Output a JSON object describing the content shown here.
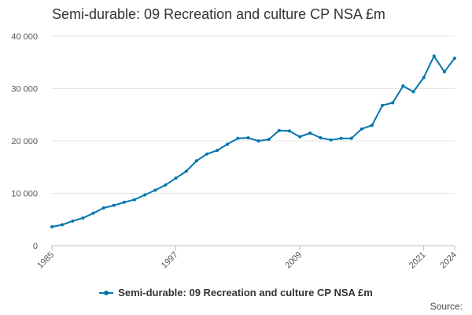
{
  "chart_data": {
    "type": "line",
    "title": "Semi-durable: 09 Recreation and culture CP NSA £m",
    "xlabel": "",
    "ylabel": "",
    "x": [
      1985,
      1986,
      1987,
      1988,
      1989,
      1990,
      1991,
      1992,
      1993,
      1994,
      1995,
      1996,
      1997,
      1998,
      1999,
      2000,
      2001,
      2002,
      2003,
      2004,
      2005,
      2006,
      2007,
      2008,
      2009,
      2010,
      2011,
      2012,
      2013,
      2014,
      2015,
      2016,
      2017,
      2018,
      2019,
      2020,
      2021,
      2022,
      2023,
      2024
    ],
    "series": [
      {
        "name": "Semi-durable: 09 Recreation and culture CP NSA £m",
        "values": [
          3600,
          4000,
          4700,
          5300,
          6200,
          7200,
          7700,
          8300,
          8800,
          9700,
          10600,
          11600,
          12900,
          14200,
          16200,
          17500,
          18200,
          19400,
          20500,
          20600,
          20000,
          20300,
          22000,
          21900,
          20800,
          21500,
          20600,
          20200,
          20500,
          20500,
          22300,
          23000,
          26800,
          27300,
          30500,
          29400,
          32100,
          36200,
          33200,
          35800
        ]
      }
    ],
    "xlim": [
      1985,
      2024
    ],
    "ylim": [
      0,
      40000
    ],
    "y_ticks": [
      0,
      10000,
      20000,
      30000,
      40000
    ],
    "y_tick_labels": [
      "0",
      "10 000",
      "20 000",
      "30 000",
      "40 000"
    ],
    "x_ticks": [
      1985,
      1997,
      2009,
      2021,
      2024
    ],
    "x_tick_labels": [
      "1985",
      "1997",
      "2009",
      "2021",
      "2024"
    ],
    "grid": true,
    "legend": "bottom-center",
    "color": "#0075b0"
  },
  "legend": {
    "label": "Semi-durable: 09 Recreation and culture CP NSA £m"
  },
  "source_label": "Source:"
}
